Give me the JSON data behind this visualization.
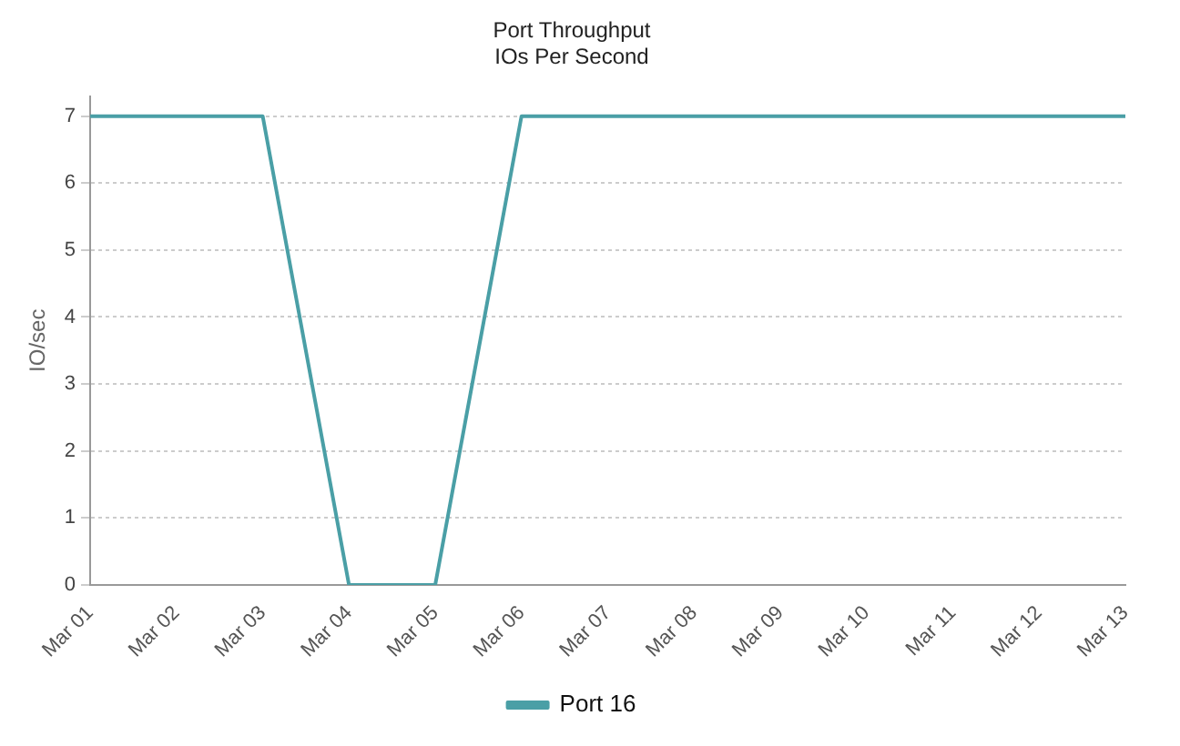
{
  "chart_data": {
    "type": "line",
    "title": "Port Throughput",
    "subtitle": "IOs Per Second",
    "ylabel": "IO/sec",
    "categories": [
      "Mar 01",
      "Mar 02",
      "Mar 03",
      "Mar 04",
      "Mar 05",
      "Mar 06",
      "Mar 07",
      "Mar 08",
      "Mar 09",
      "Mar 10",
      "Mar 11",
      "Mar 12",
      "Mar 13"
    ],
    "series": [
      {
        "name": "Port 16",
        "color": "#4a9fa6",
        "values": [
          7,
          7,
          7,
          0,
          0,
          7,
          7,
          7,
          7,
          7,
          7,
          7,
          7
        ]
      }
    ],
    "ylim": [
      0,
      7.3
    ],
    "yticks": [
      0,
      1,
      2,
      3,
      4,
      5,
      6,
      7
    ],
    "grid": "y",
    "legend": "bottom",
    "marker": "none",
    "line_style": "solid"
  }
}
